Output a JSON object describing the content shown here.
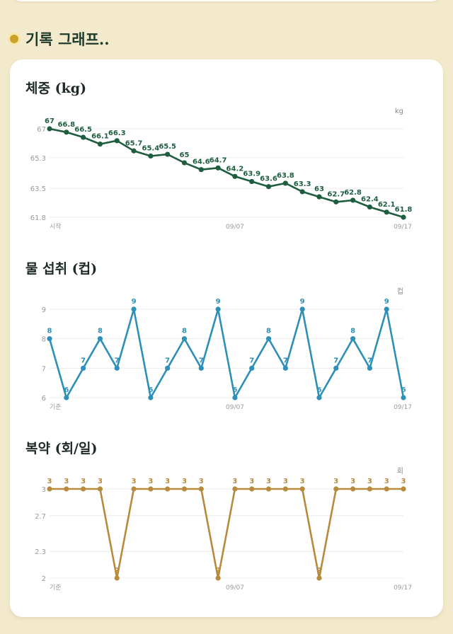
{
  "section": {
    "title": "기록 그래프.."
  },
  "colors": {
    "weight": "#1e5e3f",
    "water": "#2e8fb8",
    "meds": "#b88a3e",
    "grid": "#ececec",
    "tick": "#9a9a9a"
  },
  "chart_data": [
    {
      "type": "line",
      "title": "체중 (kg)",
      "unit": "kg",
      "color": "#1e5e3f",
      "y_ticks": [
        67,
        65.3,
        63.5,
        61.8
      ],
      "ylim": [
        61.8,
        67
      ],
      "x_ticks": [
        "시작",
        "09/07",
        "09/17"
      ],
      "values": [
        67,
        66.8,
        66.5,
        66.1,
        66.3,
        65.7,
        65.4,
        65.5,
        65,
        64.6,
        64.7,
        64.2,
        63.9,
        63.6,
        63.8,
        63.3,
        63,
        62.7,
        62.8,
        62.4,
        62.1,
        61.8
      ]
    },
    {
      "type": "line",
      "title": "물 섭취 (컵)",
      "unit": "컵",
      "color": "#2e8fb8",
      "y_ticks": [
        9,
        8,
        7,
        6
      ],
      "ylim": [
        6,
        9
      ],
      "x_ticks": [
        "기준",
        "09/07",
        "09/17"
      ],
      "values": [
        8,
        6,
        7,
        8,
        7,
        9,
        6,
        7,
        8,
        7,
        9,
        6,
        7,
        8,
        7,
        9,
        6,
        7,
        8,
        7,
        9,
        6
      ]
    },
    {
      "type": "line",
      "title": "복약 (회/일)",
      "unit": "회",
      "color": "#b88a3e",
      "y_ticks": [
        3,
        2.7,
        2.3,
        2
      ],
      "ylim": [
        2,
        3
      ],
      "x_ticks": [
        "기준",
        "09/07",
        "09/17"
      ],
      "values": [
        3,
        3,
        3,
        3,
        2,
        3,
        3,
        3,
        3,
        3,
        2,
        3,
        3,
        3,
        3,
        3,
        2,
        3,
        3,
        3,
        3,
        3
      ]
    }
  ]
}
